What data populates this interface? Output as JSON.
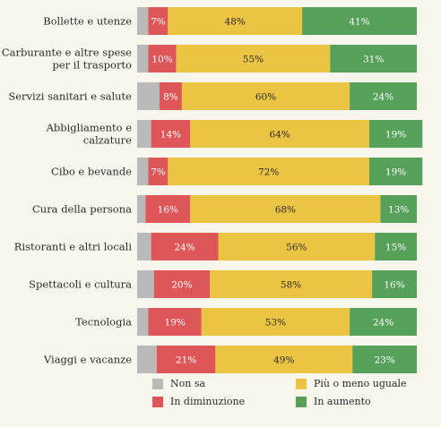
{
  "chart_data": {
    "type": "bar",
    "stacked": true,
    "orientation": "horizontal",
    "categories": [
      [
        "Bollette e utenze"
      ],
      [
        "Carburante e altre spese",
        "per il trasporto"
      ],
      [
        "Servizi sanitari e salute"
      ],
      [
        "Abbigliamento e",
        "calzature"
      ],
      [
        "Cibo e bevande"
      ],
      [
        "Cura della persona"
      ],
      [
        "Ristoranti e altri locali"
      ],
      [
        "Spettacoli e cultura"
      ],
      [
        "Tecnologia"
      ],
      [
        "Viaggi e vacanze"
      ]
    ],
    "series": [
      {
        "name": "Non sa",
        "color": "#b9b9b9",
        "values": [
          4,
          4,
          8,
          5,
          4,
          3,
          5,
          6,
          4,
          7
        ],
        "labels": [
          "",
          "",
          "",
          "",
          "",
          "",
          "",
          "",
          "",
          ""
        ]
      },
      {
        "name": "In diminuzione",
        "color": "#df5658",
        "values": [
          7,
          10,
          8,
          14,
          7,
          16,
          24,
          20,
          19,
          21
        ],
        "labels": [
          "7%",
          "10%",
          "8%",
          "14%",
          "7%",
          "16%",
          "24%",
          "20%",
          "19%",
          "21%"
        ]
      },
      {
        "name": "Più o meno uguale",
        "color": "#ecc443",
        "values": [
          48,
          55,
          60,
          64,
          72,
          68,
          56,
          58,
          53,
          49
        ],
        "labels": [
          "48%",
          "55%",
          "60%",
          "64%",
          "72%",
          "68%",
          "56%",
          "58%",
          "53%",
          "49%"
        ]
      },
      {
        "name": "In aumento",
        "color": "#56a05a",
        "values": [
          41,
          31,
          24,
          19,
          19,
          13,
          15,
          16,
          24,
          23
        ],
        "labels": [
          "41%",
          "31%",
          "24%",
          "19%",
          "19%",
          "13%",
          "15%",
          "16%",
          "24%",
          "23%"
        ]
      }
    ],
    "xlim": [
      0,
      100
    ],
    "label_colors": [
      "#ffffff",
      "#ffffff",
      "#2b2b2b",
      "#ffffff"
    ],
    "legend_position": "bottom"
  }
}
